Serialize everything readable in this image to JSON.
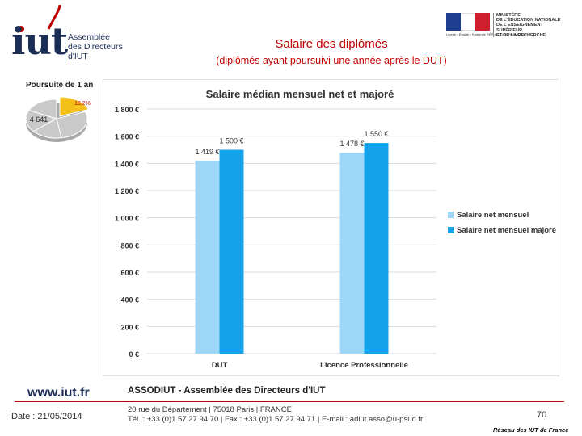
{
  "header": {
    "logo": {
      "mark": "iut",
      "text": "Assemblée\ndes Directeurs\nd'IUT"
    },
    "ministry": {
      "text": "MINISTÈRE\nDE L'ÉDUCATION NATIONALE\nDE L'ENSEIGNEMENT SUPÉRIEUR\nET DE LA RECHERCHE",
      "caption": "Liberté • Égalité • Fraternité  RÉPUBLIQUE FRANÇAISE"
    },
    "title": "Salaire des diplômés",
    "subtitle": "(diplômés ayant poursuivi une année après le DUT)"
  },
  "pie": {
    "title": "Poursuite de 1 an",
    "highlight_label": "19,2%",
    "count_label": "4 641",
    "highlight_fraction": 0.192,
    "colors": {
      "highlight": "#f2c019",
      "rest": "#c9c9c9"
    }
  },
  "chart_data": {
    "type": "bar",
    "title": "Salaire médian mensuel net et majoré",
    "categories": [
      "DUT",
      "Licence Professionnelle"
    ],
    "series": [
      {
        "name": "Salaire net mensuel",
        "values": [
          1419,
          1478
        ],
        "labels": [
          "1 419 €",
          "1 478 €"
        ],
        "color": "#9dd6f6"
      },
      {
        "name": "Salaire net mensuel majoré",
        "values": [
          1500,
          1550
        ],
        "labels": [
          "1 500 €",
          "1 550 €"
        ],
        "color": "#14a3eb"
      }
    ],
    "yticks": [
      "0 €",
      "200 €",
      "400 €",
      "600 €",
      "800 €",
      "1 000 €",
      "1 200 €",
      "1 400 €",
      "1 600 €",
      "1 800 €"
    ],
    "ylim": [
      0,
      1800
    ],
    "grid": true,
    "legend_position": "right",
    "xlabel": "",
    "ylabel": ""
  },
  "footer": {
    "url": "www.iut.fr",
    "date": "Date : 21/05/2014",
    "org": "ASSODIUT - Assemblée des Directeurs d'IUT",
    "address_line1": "20 rue du Département | 75018 Paris | FRANCE",
    "address_line2": "Tél. : +33 (0)1 57 27 94 70 | Fax : +33 (0)1 57 27 94 71 | E-mail : adiut.asso@u-psud.fr",
    "page_number": "70",
    "network": "Réseau des IUT de France",
    "accent_color": "#c00000"
  }
}
